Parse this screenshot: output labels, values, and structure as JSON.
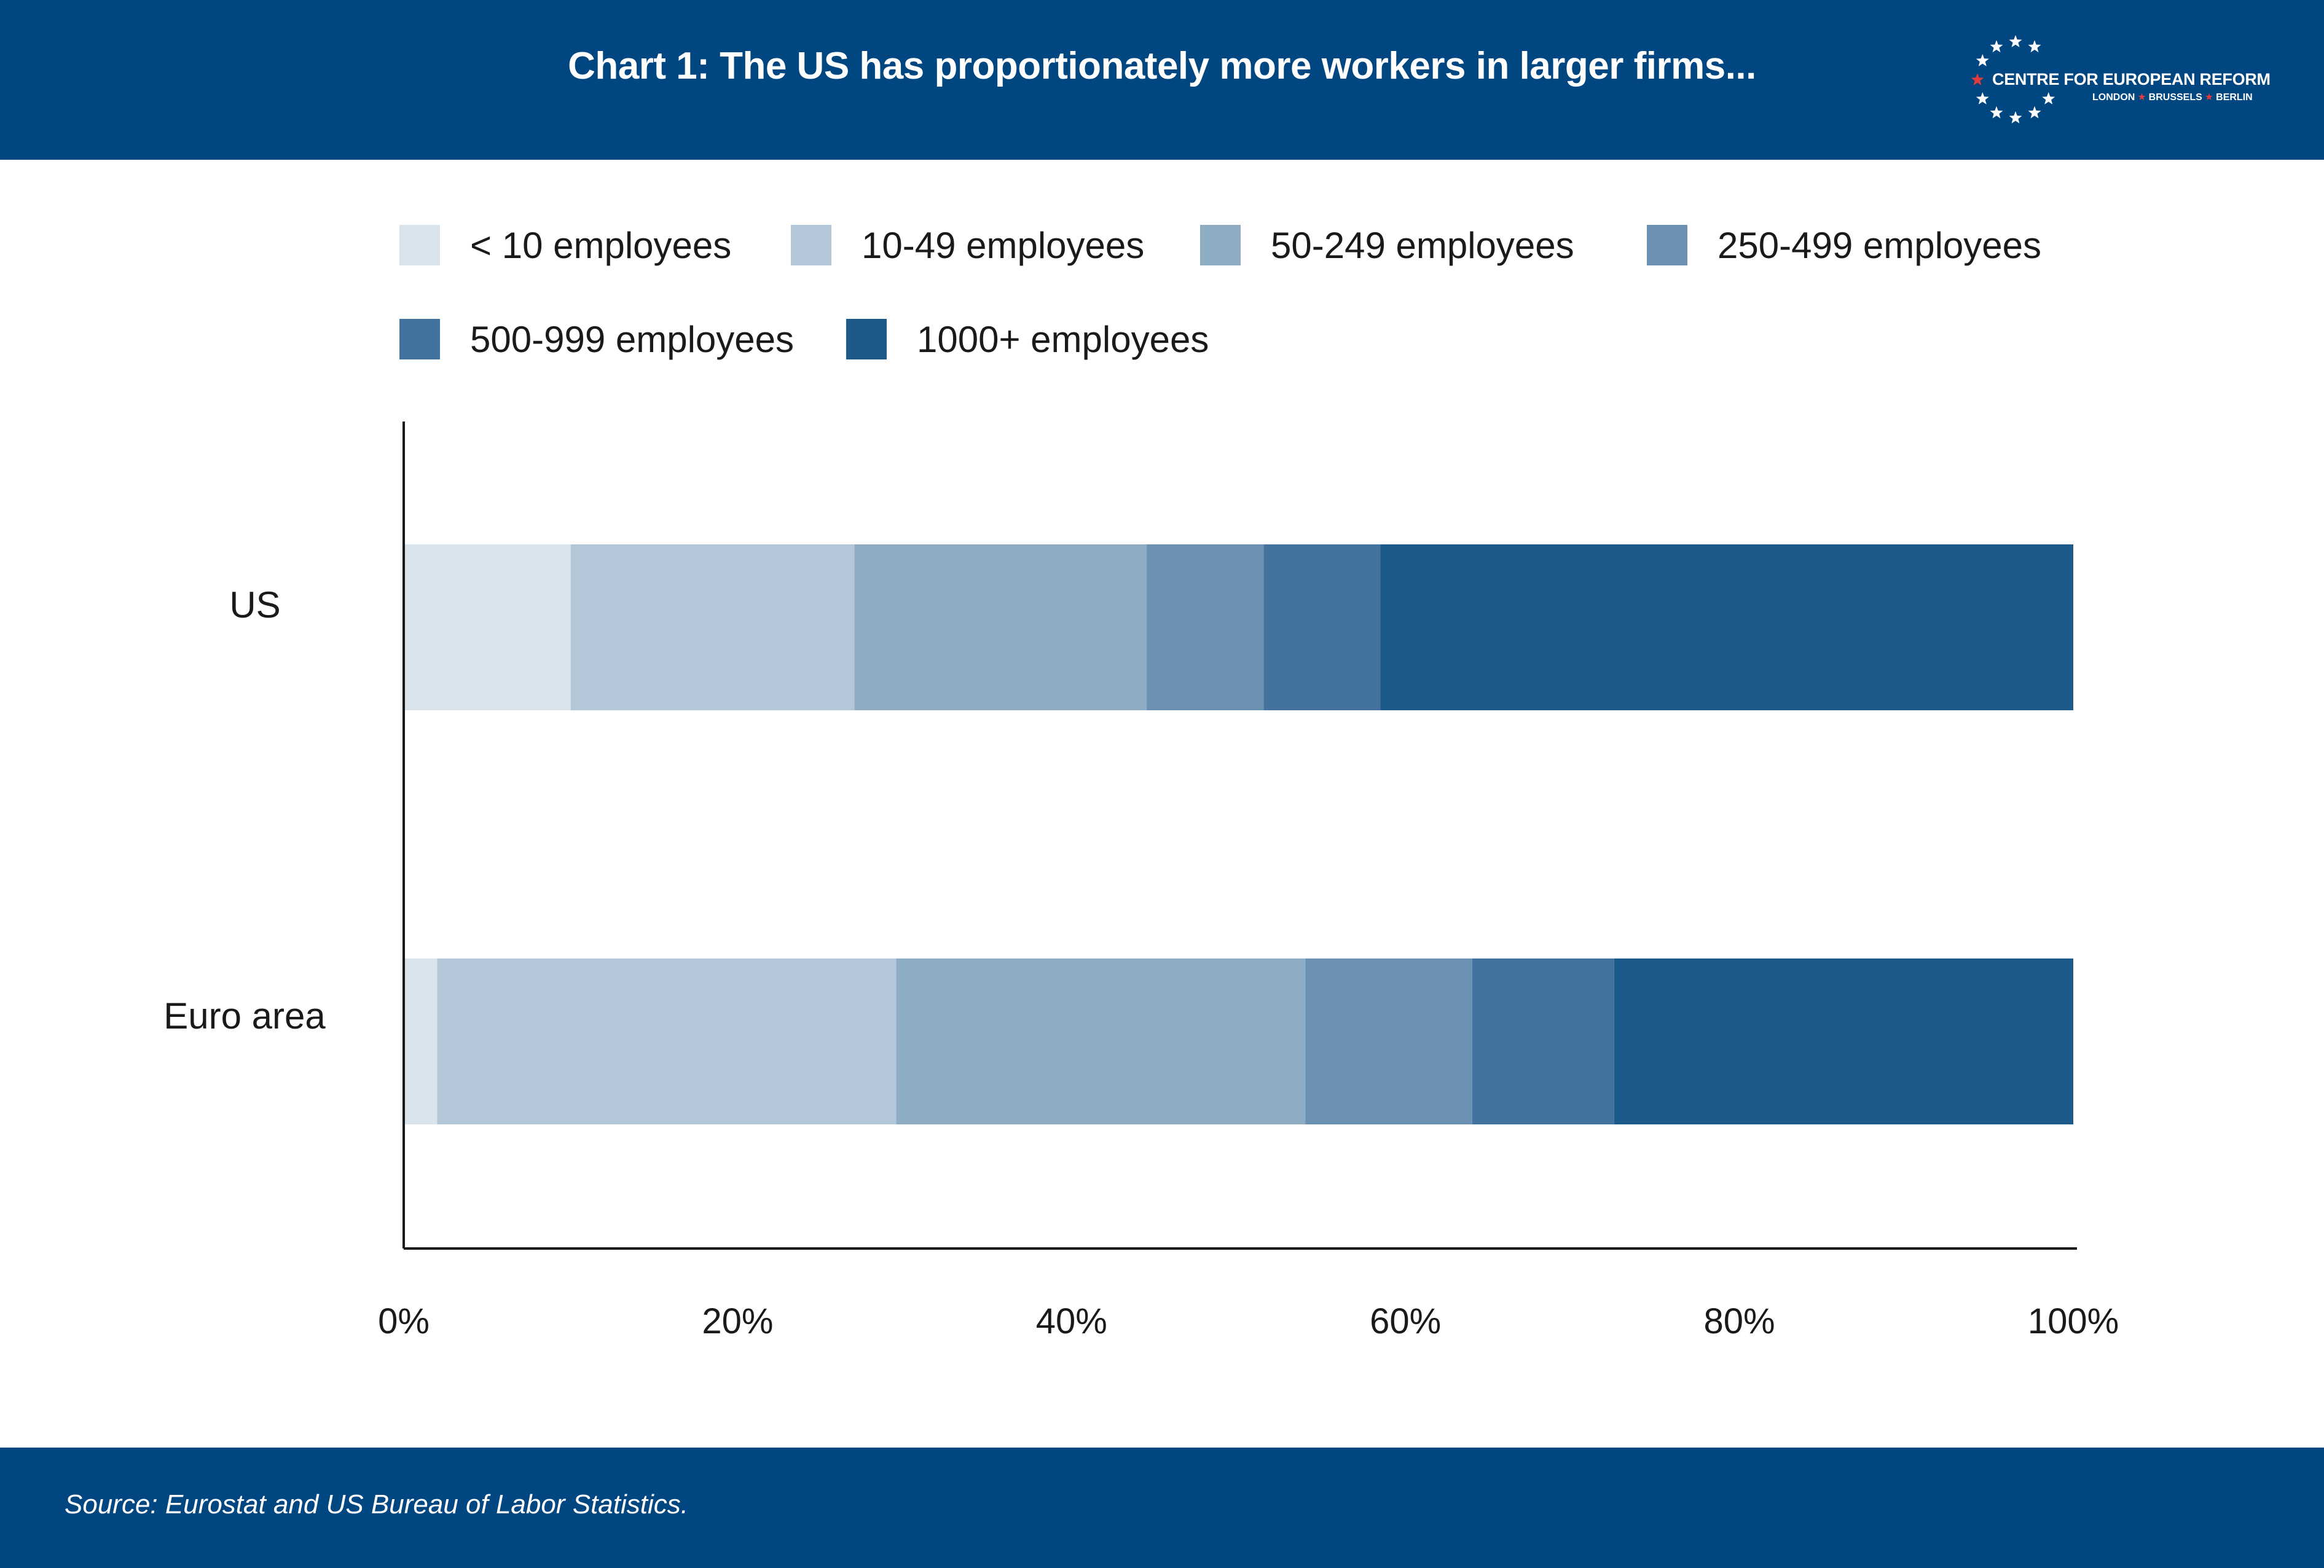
{
  "header": {
    "title": "Chart 1: The US has proportionately more workers in larger firms...",
    "logo_name": "CENTRE FOR EUROPEAN REFORM",
    "logo_cities": [
      "LONDON",
      "BRUSSELS",
      "BERLIN"
    ]
  },
  "colors": {
    "brand": "#004680",
    "logo_star_accent": "#e23b3b"
  },
  "chart_data": {
    "type": "bar",
    "orientation": "horizontal",
    "stacked": true,
    "normalized_100": true,
    "categories": [
      "US",
      "Euro area"
    ],
    "series": [
      {
        "name": "< 10 employees",
        "color": "#d9e3ec",
        "values": [
          10.0,
          2.0
        ]
      },
      {
        "name": "10-49 employees",
        "color": "#b3c7d8",
        "values": [
          17.0,
          27.5
        ]
      },
      {
        "name": "50-249 employees",
        "color": "#8eacc4",
        "values": [
          17.5,
          24.5
        ]
      },
      {
        "name": "250-499 employees",
        "color": "#6a91b1",
        "values": [
          7.0,
          10.0
        ]
      },
      {
        "name": "500-999 employees",
        "color": "#43729e",
        "values": [
          7.0,
          8.5
        ]
      },
      {
        "name": "1000+ employees",
        "color": "#1c5a8c",
        "values": [
          41.5,
          27.5
        ]
      }
    ],
    "xlim": [
      0,
      100
    ],
    "x_ticks": [
      "0%",
      "20%",
      "40%",
      "60%",
      "80%",
      "100%"
    ],
    "legend_position": "top",
    "grid": false
  },
  "footer": {
    "source": "Source: Eurostat and US Bureau of Labor Statistics."
  }
}
